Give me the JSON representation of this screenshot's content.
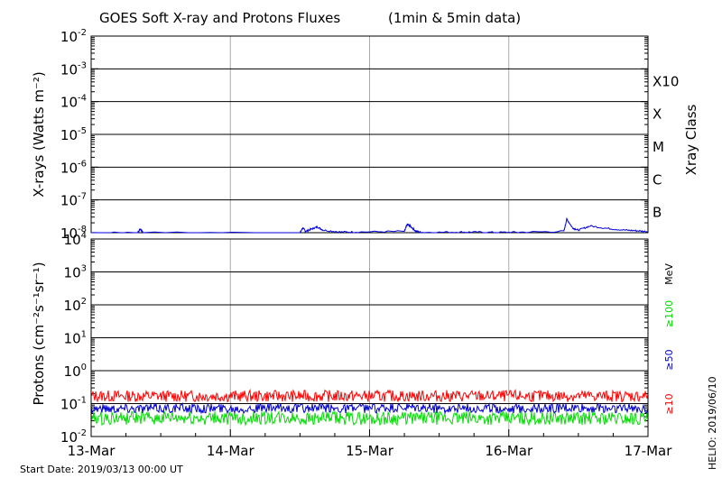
{
  "title": "GOES Soft X-ray and Protons Fluxes",
  "subtitle": "(1min & 5min data)",
  "footer": {
    "start_date": "Start Date: 2019/03/13 00:00 UT",
    "helio": "HELIO: 2019/06/10"
  },
  "colors": {
    "xray": "#0000dd",
    "p10": "#ff0000",
    "p50": "#0000cc",
    "p100": "#00dd00",
    "grid_vertical": "#aaaaaa"
  },
  "chart_data": [
    {
      "type": "line",
      "name": "xray-panel",
      "ylabel": "X-rays (Watts m⁻²)",
      "yscale": "log",
      "ylim": [
        1e-08,
        0.01
      ],
      "y_ticks": [
        {
          "mantissa": "10",
          "exp": "-2"
        },
        {
          "mantissa": "10",
          "exp": "-3"
        },
        {
          "mantissa": "10",
          "exp": "-4"
        },
        {
          "mantissa": "10",
          "exp": "-5"
        },
        {
          "mantissa": "10",
          "exp": "-6"
        },
        {
          "mantissa": "10",
          "exp": "-7"
        },
        {
          "mantissa": "10",
          "exp": "-8"
        }
      ],
      "right_label": "Xray Class",
      "class_labels": [
        {
          "label": "X10",
          "value": 0.001
        },
        {
          "label": "X",
          "value": 0.0001
        },
        {
          "label": "M",
          "value": 1e-05
        },
        {
          "label": "C",
          "value": 1e-06
        },
        {
          "label": "B",
          "value": 1e-07
        }
      ],
      "series": [
        {
          "x": [
            "2019-03-13 00:00",
            "2019-03-13 08:00",
            "2019-03-13 08:30",
            "2019-03-13 09:00",
            "2019-03-14 12:00",
            "2019-03-14 12:30",
            "2019-03-14 13:00",
            "2019-03-14 14:00",
            "2019-03-14 15:00",
            "2019-03-14 16:00",
            "2019-03-14 19:00",
            "2019-03-14 22:00",
            "2019-03-15 06:00",
            "2019-03-15 06:30",
            "2019-03-15 07:00",
            "2019-03-15 08:00",
            "2019-03-15 09:00",
            "2019-03-15 15:00",
            "2019-03-15 18:00",
            "2019-03-15 22:00",
            "2019-03-16 02:00",
            "2019-03-16 09:30",
            "2019-03-16 10:00",
            "2019-03-16 11:00",
            "2019-03-16 12:00",
            "2019-03-16 14:00",
            "2019-03-16 17:00",
            "2019-03-16 20:00",
            "2019-03-16 22:00",
            "2019-03-17 00:00"
          ],
          "values": [
            1e-08,
            1e-08,
            1.3e-08,
            1e-08,
            1e-08,
            1.4e-08,
            1.1e-08,
            1.3e-08,
            1.5e-08,
            1.2e-08,
            1.05e-08,
            1.05e-08,
            1.1e-08,
            1.8e-08,
            1.6e-08,
            1.1e-08,
            1.02e-08,
            1.04e-08,
            1.04e-08,
            1.02e-08,
            1.03e-08,
            1.1e-08,
            2.6e-08,
            1.4e-08,
            1.2e-08,
            1.6e-08,
            1.35e-08,
            1.2e-08,
            1.15e-08,
            1.08e-08
          ]
        }
      ]
    },
    {
      "type": "line",
      "name": "proton-panel",
      "ylabel": "Protons (cm⁻²s⁻¹sr⁻¹)",
      "yscale": "log",
      "ylim": [
        0.01,
        10000
      ],
      "y_ticks": [
        {
          "mantissa": "10",
          "exp": "4"
        },
        {
          "mantissa": "10",
          "exp": "3"
        },
        {
          "mantissa": "10",
          "exp": "2"
        },
        {
          "mantissa": "10",
          "exp": "1"
        },
        {
          "mantissa": "10",
          "exp": "0"
        },
        {
          "mantissa": "10",
          "exp": "-1"
        },
        {
          "mantissa": "10",
          "exp": "-2"
        }
      ],
      "threshold_dashed": 10,
      "right_labels": {
        "mev": "MeV",
        "ge100": "≥100",
        "ge50": "≥50",
        "ge10": "≥10"
      },
      "x_ticks": [
        "13-Mar",
        "14-Mar",
        "15-Mar",
        "16-Mar",
        "17-Mar"
      ],
      "series": [
        {
          "name": "≥10",
          "mean": 0.17,
          "spread": 1.5
        },
        {
          "name": "≥50",
          "mean": 0.072,
          "spread": 1.4
        },
        {
          "name": "≥100",
          "mean": 0.036,
          "spread": 1.6
        }
      ]
    }
  ]
}
